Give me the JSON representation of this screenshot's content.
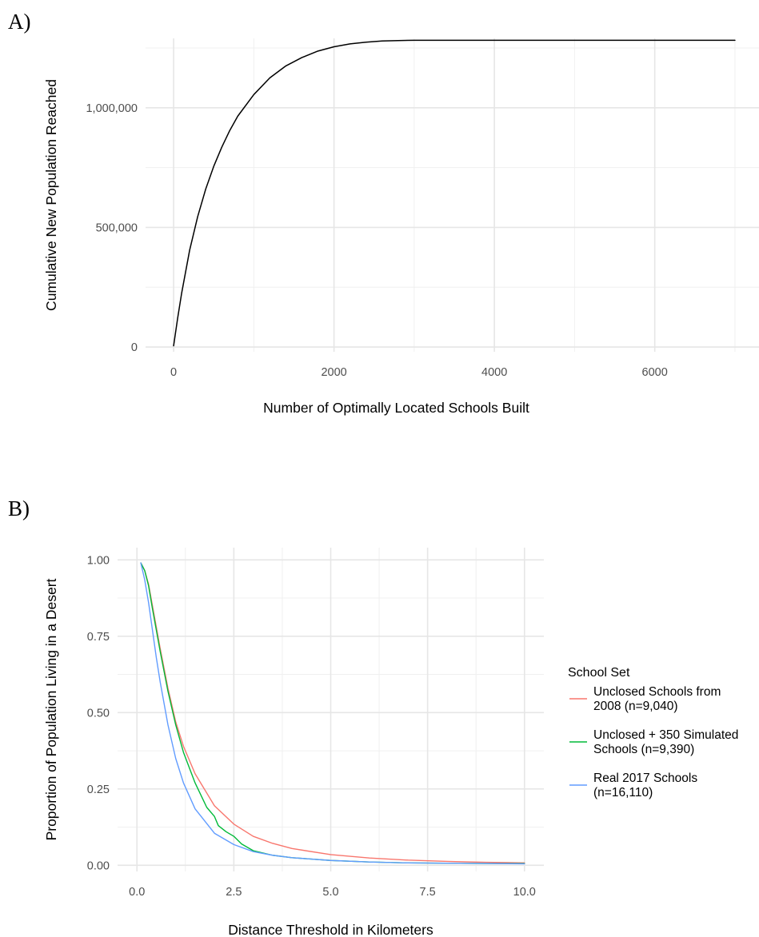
{
  "chart_data": [
    {
      "panel_label": "A)",
      "type": "line",
      "xlabel": "Number of Optimally Located Schools Built",
      "ylabel": "Cumulative New Population Reached",
      "xlim": [
        -350,
        7300
      ],
      "ylim": [
        -20000,
        1290000
      ],
      "x_ticks": [
        0,
        2000,
        4000,
        6000
      ],
      "x_tick_labels": [
        "0",
        "2000",
        "4000",
        "6000"
      ],
      "y_ticks": [
        0,
        500000,
        1000000
      ],
      "y_tick_labels": [
        "0",
        "500,000",
        "1,000,000"
      ],
      "grid": true,
      "series": [
        {
          "color": "#000000",
          "x": [
            0,
            50,
            100,
            200,
            300,
            400,
            500,
            600,
            700,
            800,
            1000,
            1200,
            1400,
            1600,
            1800,
            2000,
            2200,
            2400,
            2600,
            2800,
            3000,
            3500,
            4000,
            5000,
            6000,
            7000
          ],
          "y": [
            5000,
            120000,
            225000,
            405000,
            545000,
            660000,
            755000,
            835000,
            905000,
            965000,
            1055000,
            1125000,
            1175000,
            1210000,
            1237000,
            1255000,
            1267000,
            1274000,
            1279000,
            1281000,
            1282000,
            1282000,
            1282000,
            1282000,
            1282000,
            1282000
          ]
        }
      ]
    },
    {
      "panel_label": "B)",
      "type": "line",
      "xlabel": "Distance Threshold in Kilometers",
      "ylabel": "Proportion of Population Living in a Desert",
      "xlim": [
        -0.5,
        10.5
      ],
      "ylim": [
        -0.02,
        1.04
      ],
      "x_ticks": [
        0,
        2.5,
        5,
        7.5,
        10
      ],
      "x_tick_labels": [
        "0.0",
        "2.5",
        "5.0",
        "7.5",
        "10.0"
      ],
      "y_ticks": [
        0,
        0.25,
        0.5,
        0.75,
        1
      ],
      "y_tick_labels": [
        "0.00",
        "0.25",
        "0.50",
        "0.75",
        "1.00"
      ],
      "grid": true,
      "legend": {
        "title": "School Set",
        "position": "right"
      },
      "series": [
        {
          "name": "Unclosed Schools from 2008 (n=9,040)",
          "legend_lines": [
            "Unclosed Schools from",
            "2008 (n=9,040)"
          ],
          "color": "#F8766D",
          "x": [
            0.1,
            0.2,
            0.3,
            0.4,
            0.5,
            0.6,
            0.8,
            1.0,
            1.2,
            1.5,
            2.0,
            2.5,
            3.0,
            3.5,
            4.0,
            5.0,
            6.0,
            7.0,
            8.0,
            9.0,
            10.0
          ],
          "y": [
            0.99,
            0.965,
            0.92,
            0.85,
            0.78,
            0.71,
            0.58,
            0.47,
            0.39,
            0.3,
            0.195,
            0.135,
            0.095,
            0.072,
            0.055,
            0.035,
            0.024,
            0.017,
            0.013,
            0.01,
            0.008
          ]
        },
        {
          "name": "Unclosed + 350 Simulated Schools (n=9,390)",
          "legend_lines": [
            "Unclosed + 350 Simulated",
            "Schools (n=9,390)"
          ],
          "color": "#00BA38",
          "x": [
            0.1,
            0.2,
            0.3,
            0.4,
            0.5,
            0.6,
            0.8,
            1.0,
            1.2,
            1.5,
            1.8,
            2.0,
            2.1,
            2.3,
            2.5,
            2.7,
            3.0,
            3.5,
            4.0,
            5.0,
            6.0,
            7.0,
            8.0,
            9.0,
            10.0
          ],
          "y": [
            0.99,
            0.965,
            0.915,
            0.84,
            0.77,
            0.7,
            0.57,
            0.46,
            0.37,
            0.27,
            0.19,
            0.16,
            0.13,
            0.11,
            0.095,
            0.07,
            0.048,
            0.033,
            0.025,
            0.016,
            0.011,
            0.008,
            0.007,
            0.006,
            0.006
          ]
        },
        {
          "name": "Real 2017 Schools (n=16,110)",
          "legend_lines": [
            "Real 2017 Schools",
            "(n=16,110)"
          ],
          "color": "#619CFF",
          "x": [
            0.1,
            0.2,
            0.3,
            0.4,
            0.5,
            0.6,
            0.8,
            1.0,
            1.2,
            1.5,
            2.0,
            2.5,
            3.0,
            3.5,
            4.0,
            5.0,
            6.0,
            7.0,
            8.0,
            9.0,
            10.0
          ],
          "y": [
            0.99,
            0.935,
            0.86,
            0.77,
            0.68,
            0.6,
            0.46,
            0.35,
            0.27,
            0.185,
            0.105,
            0.068,
            0.045,
            0.033,
            0.025,
            0.016,
            0.011,
            0.008,
            0.007,
            0.006,
            0.005
          ]
        }
      ]
    }
  ]
}
